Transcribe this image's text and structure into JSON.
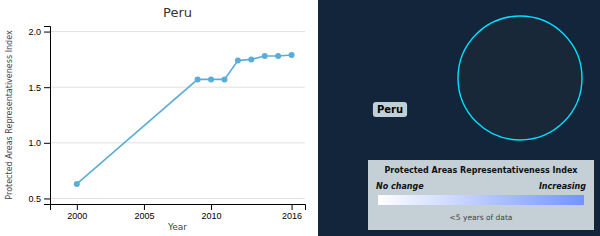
{
  "chart_data": {
    "type": "line",
    "title": "Peru",
    "xlabel": "Year",
    "ylabel": "Protected Areas Representativeness Index",
    "x": [
      2000,
      2009,
      2010,
      2011,
      2012,
      2013,
      2014,
      2015,
      2016
    ],
    "values": [
      0.63,
      1.57,
      1.57,
      1.57,
      1.74,
      1.75,
      1.78,
      1.78,
      1.79
    ],
    "color": "#5aadd6",
    "marker": "circle",
    "grid": true,
    "xlim": [
      1998,
      2017
    ],
    "xticks": [
      2000,
      2005,
      2010,
      2016
    ],
    "ylim": [
      0.45,
      2.05
    ],
    "yticks": [
      0.5,
      {
        "value": 1.0,
        "label": "1.0"
      },
      1.5,
      {
        "value": 2.0,
        "label": "2.0"
      }
    ],
    "annotations": [
      {
        "text": "Peru"
      },
      {
        "text": "Protected Areas Representativeness Index"
      },
      {
        "text": "No change"
      },
      {
        "text": "Increasing"
      },
      {
        "text": "<5 years of data"
      }
    ]
  }
}
